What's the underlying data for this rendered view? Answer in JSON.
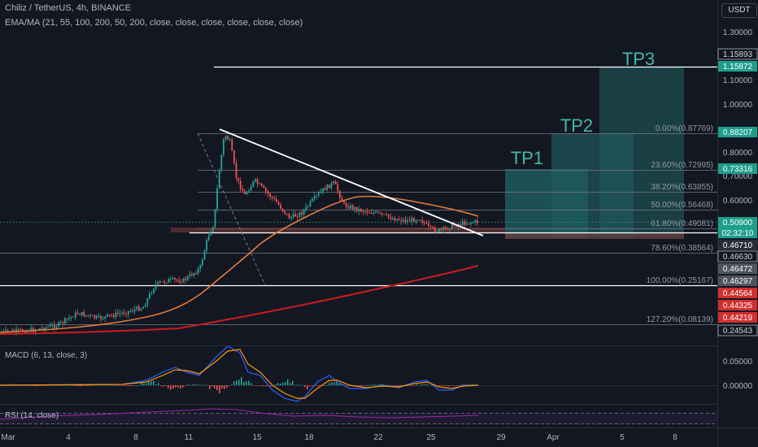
{
  "header": {
    "symbol_line": "Chiliz / TetherUS, 4h, BINANCE",
    "indicator_line": "EMA/MA (21, 55, 100, 200, 50, 200, close, close, close, close, close, close)",
    "currency": "USDT"
  },
  "price_axis": {
    "ticks": [
      "1.30000",
      "1.10000",
      "1.00000",
      "0.80000",
      "0.70000",
      "0.60000"
    ],
    "boxes": [
      {
        "label": "1.15893",
        "style": "plain"
      },
      {
        "label": "1.15872",
        "style": "teal"
      },
      {
        "label": "0.88207",
        "style": "teal"
      },
      {
        "label": "0.73316",
        "style": "teal"
      },
      {
        "label": "0.50900",
        "style": "teal",
        "sub": "02:32:10"
      },
      {
        "label": "0.46710",
        "style": "dark"
      },
      {
        "label": "0.46630",
        "style": "plain"
      },
      {
        "label": "0.46472",
        "style": "grey"
      },
      {
        "label": "0.46297",
        "style": "grey"
      },
      {
        "label": "0.44564",
        "style": "red"
      },
      {
        "label": "0.44325",
        "style": "red"
      },
      {
        "label": "0.44219",
        "style": "red"
      },
      {
        "label": "0.24543",
        "style": "plain"
      }
    ]
  },
  "fib_levels": [
    {
      "label": "0.00%(0.87769)"
    },
    {
      "label": "23.60%(0.72995)"
    },
    {
      "label": "38.20%(0.63855)"
    },
    {
      "label": "50.00%(0.56468)"
    },
    {
      "label": "61.80%(0.49081)"
    },
    {
      "label": "78.60%(0.38564)"
    },
    {
      "label": "100.00%(0.25167)"
    },
    {
      "label": "127.20%(0.08139)"
    }
  ],
  "targets": [
    "TP1",
    "TP2",
    "TP3"
  ],
  "macd": {
    "label": "MACD (6, 13, close, 3)",
    "ticks": [
      "0.05000",
      "0.00000"
    ]
  },
  "rsi": {
    "label": "RSI (14, close)"
  },
  "time_axis": [
    "Mar",
    "4",
    "8",
    "11",
    "15",
    "18",
    "22",
    "25",
    "29",
    "Apr",
    "5",
    "8"
  ],
  "colors": {
    "background": "#131722",
    "up": "#26a69a",
    "down": "#ef5350",
    "ema_orange": "#e07b39",
    "ma_red": "#c81e1e",
    "tp_fill": "#1f5a5c",
    "trendline": "#ffffff"
  }
}
